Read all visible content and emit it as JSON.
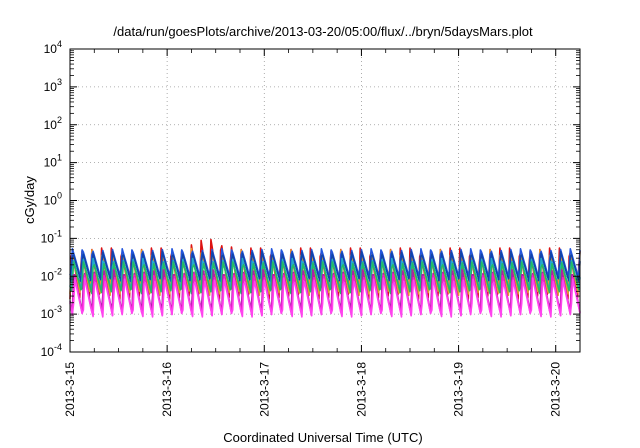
{
  "chart_data": {
    "type": "line",
    "title": "/data/run/goesPlots/archive/2013-03-20/05:00/flux/../bryn/5daysMars.plot",
    "xlabel": "Coordinated Universal Time (UTC)",
    "ylabel": "cGy/day",
    "y_scale": "log",
    "ylim": [
      0.0001,
      10000
    ],
    "xlim_days": [
      0,
      5.25
    ],
    "grid": true,
    "legend": "none",
    "x_ticks": [
      {
        "day": 0,
        "label": "2013-3-15"
      },
      {
        "day": 1,
        "label": "2013-3-16"
      },
      {
        "day": 2,
        "label": "2013-3-17"
      },
      {
        "day": 3,
        "label": "2013-3-18"
      },
      {
        "day": 4,
        "label": "2013-3-19"
      },
      {
        "day": 5,
        "label": "2013-3-20"
      }
    ],
    "y_ticks": [
      {
        "value": 0.0001,
        "base": "10",
        "exp": "-4"
      },
      {
        "value": 0.001,
        "base": "10",
        "exp": "-3"
      },
      {
        "value": 0.01,
        "base": "10",
        "exp": "-2"
      },
      {
        "value": 0.1,
        "base": "10",
        "exp": "-1"
      },
      {
        "value": 1,
        "base": "10",
        "exp": "0"
      },
      {
        "value": 10,
        "base": "10",
        "exp": "1"
      },
      {
        "value": 100,
        "base": "10",
        "exp": "2"
      },
      {
        "value": 1000,
        "base": "10",
        "exp": "3"
      },
      {
        "value": 10000,
        "base": "10",
        "exp": "4"
      }
    ],
    "oscillation_period_days": 0.1025,
    "series": [
      {
        "color": "#dd1111",
        "peak": 0.06,
        "trough": 0.0025,
        "phase": 0.0,
        "peak_boost": 1.7
      },
      {
        "color": "#e89a2a",
        "peak": 0.05,
        "trough": 0.003,
        "phase": 0.004,
        "peak_boost": 1.2
      },
      {
        "color": "#2255dd",
        "peak": 0.055,
        "trough": 0.009,
        "phase": 0.008,
        "peak_boost": 1.0
      },
      {
        "color": "#1144aa",
        "peak": 0.045,
        "trough": 0.007,
        "phase": 0.012,
        "peak_boost": 1.0
      },
      {
        "color": "#22aacc",
        "peak": 0.03,
        "trough": 0.004,
        "phase": 0.016,
        "peak_boost": 1.0
      },
      {
        "color": "#22bb66",
        "peak": 0.025,
        "trough": 0.0035,
        "phase": 0.02,
        "peak_boost": 1.0
      },
      {
        "color": "#aa22aa",
        "peak": 0.015,
        "trough": 0.0011,
        "phase": 0.024,
        "peak_boost": 1.0
      },
      {
        "color": "#ee22cc",
        "peak": 0.012,
        "trough": 0.0009,
        "phase": 0.028,
        "peak_boost": 1.0
      },
      {
        "color": "#ff44ee",
        "peak": 0.009,
        "trough": 0.0008,
        "phase": 0.032,
        "peak_boost": 1.0
      }
    ]
  }
}
